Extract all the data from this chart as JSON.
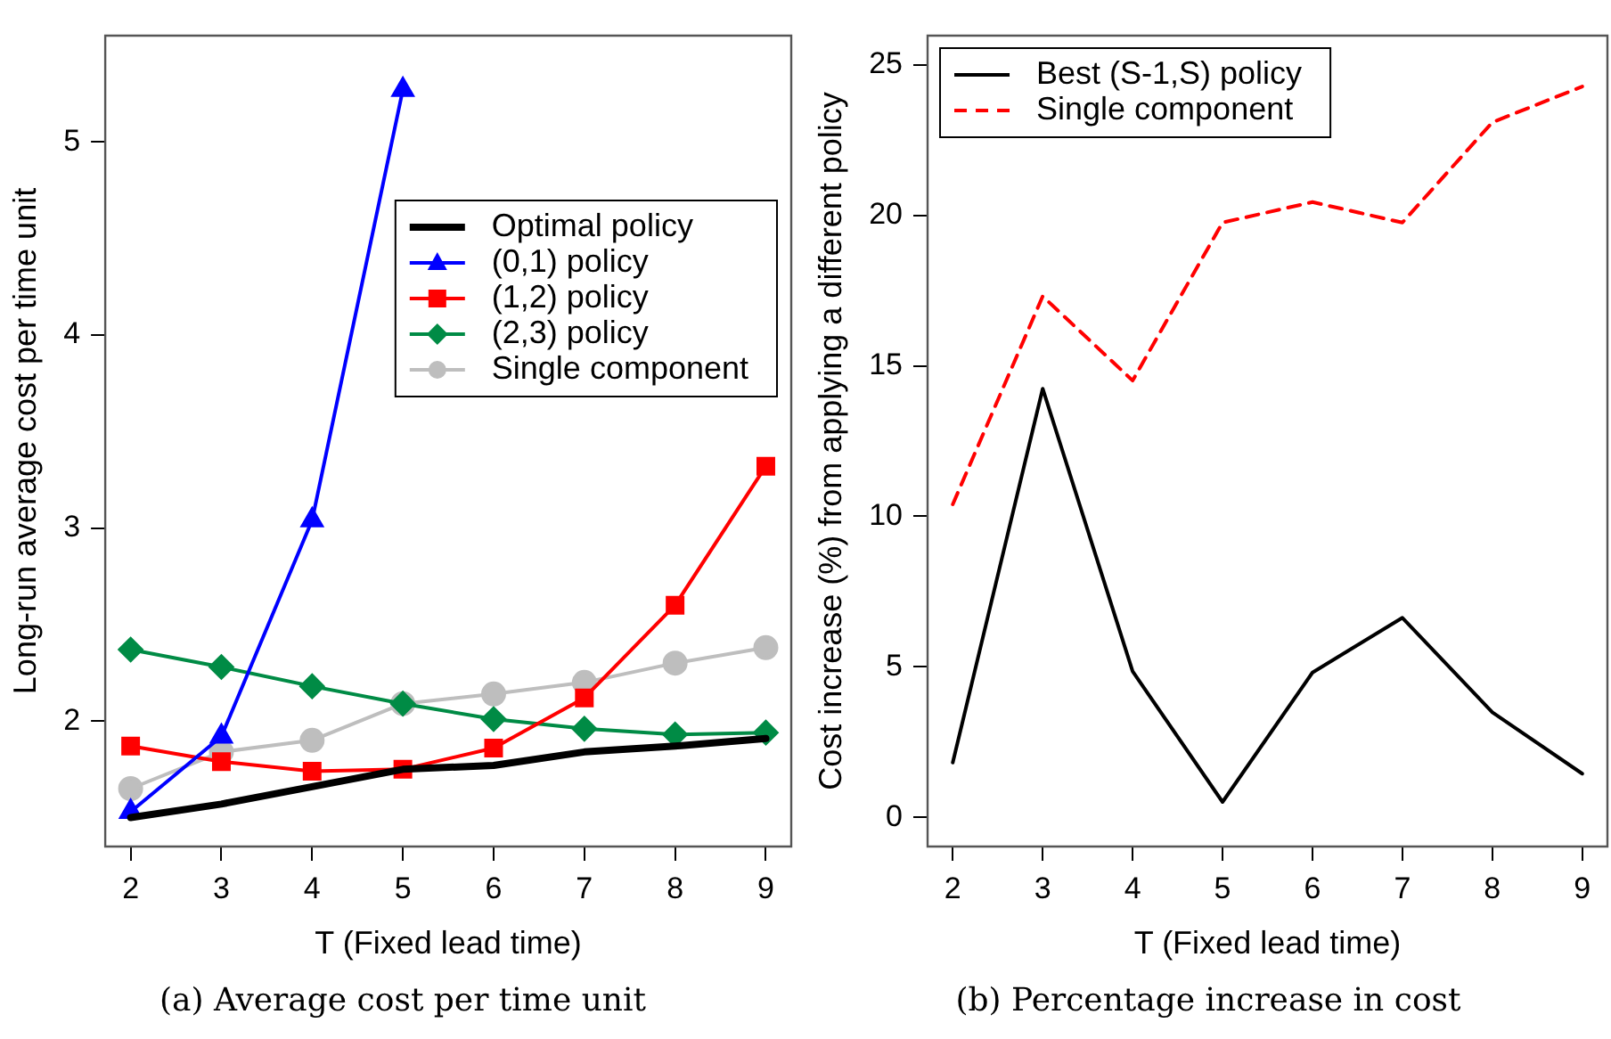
{
  "chart_data": [
    {
      "type": "line",
      "xlabel": "T (Fixed lead time)",
      "ylabel": "Long-run average cost per time unit",
      "x": [
        2,
        3,
        4,
        5,
        6,
        7,
        8,
        9
      ],
      "xlim": [
        1.72,
        9.28
      ],
      "xticks": [
        2,
        3,
        4,
        5,
        6,
        7,
        8,
        9
      ],
      "ylim": [
        1.35,
        5.55
      ],
      "yticks": [
        2,
        3,
        4,
        5
      ],
      "grid": false,
      "legend": "right",
      "series": [
        {
          "name": "Optimal policy",
          "color": "#000000",
          "marker": "none",
          "values": [
            1.5,
            1.57,
            1.66,
            1.75,
            1.77,
            1.84,
            1.87,
            1.91
          ]
        },
        {
          "name": "(0,1) policy",
          "color": "#0000ff",
          "marker": "triangle",
          "values": [
            1.53,
            1.92,
            3.04,
            5.27,
            null,
            null,
            null,
            null
          ]
        },
        {
          "name": "(1,2) policy",
          "color": "#ff0000",
          "marker": "square",
          "values": [
            1.87,
            1.79,
            1.74,
            1.75,
            1.86,
            2.12,
            2.6,
            3.32
          ]
        },
        {
          "name": "(2,3) policy",
          "color": "#008b45",
          "marker": "diamond",
          "values": [
            2.37,
            2.28,
            2.18,
            2.09,
            2.01,
            1.96,
            1.93,
            1.94
          ]
        },
        {
          "name": "Single component",
          "color": "#bebebe",
          "marker": "circle",
          "values": [
            1.65,
            1.84,
            1.9,
            2.09,
            2.14,
            2.2,
            2.3,
            2.38
          ]
        }
      ],
      "annotations": [
        "(a) Average cost per time unit"
      ]
    },
    {
      "type": "line",
      "xlabel": "T (Fixed lead time)",
      "ylabel": "Cost increase (%) from applying a different policy",
      "x": [
        2,
        3,
        4,
        5,
        6,
        7,
        8,
        9
      ],
      "xlim": [
        1.72,
        9.28
      ],
      "xticks": [
        2,
        3,
        4,
        5,
        6,
        7,
        8,
        9
      ],
      "ylim": [
        -0.97,
        25.97
      ],
      "yticks": [
        0,
        5,
        10,
        15,
        20,
        25
      ],
      "grid": false,
      "legend": "top left",
      "marker": "none",
      "series": [
        {
          "name": "Best (S-1,S) policy",
          "color": "#000000",
          "line_style": "solid",
          "values": [
            1.82,
            14.24,
            4.85,
            0.51,
            4.81,
            6.63,
            3.49,
            1.45
          ]
        },
        {
          "name": "Single component",
          "color": "#ff0000",
          "line_style": "dashed",
          "values": [
            10.4,
            17.31,
            14.51,
            19.76,
            20.44,
            19.76,
            23.09,
            24.28
          ]
        }
      ],
      "annotations": [
        "(b) Percentage increase in cost"
      ]
    }
  ]
}
